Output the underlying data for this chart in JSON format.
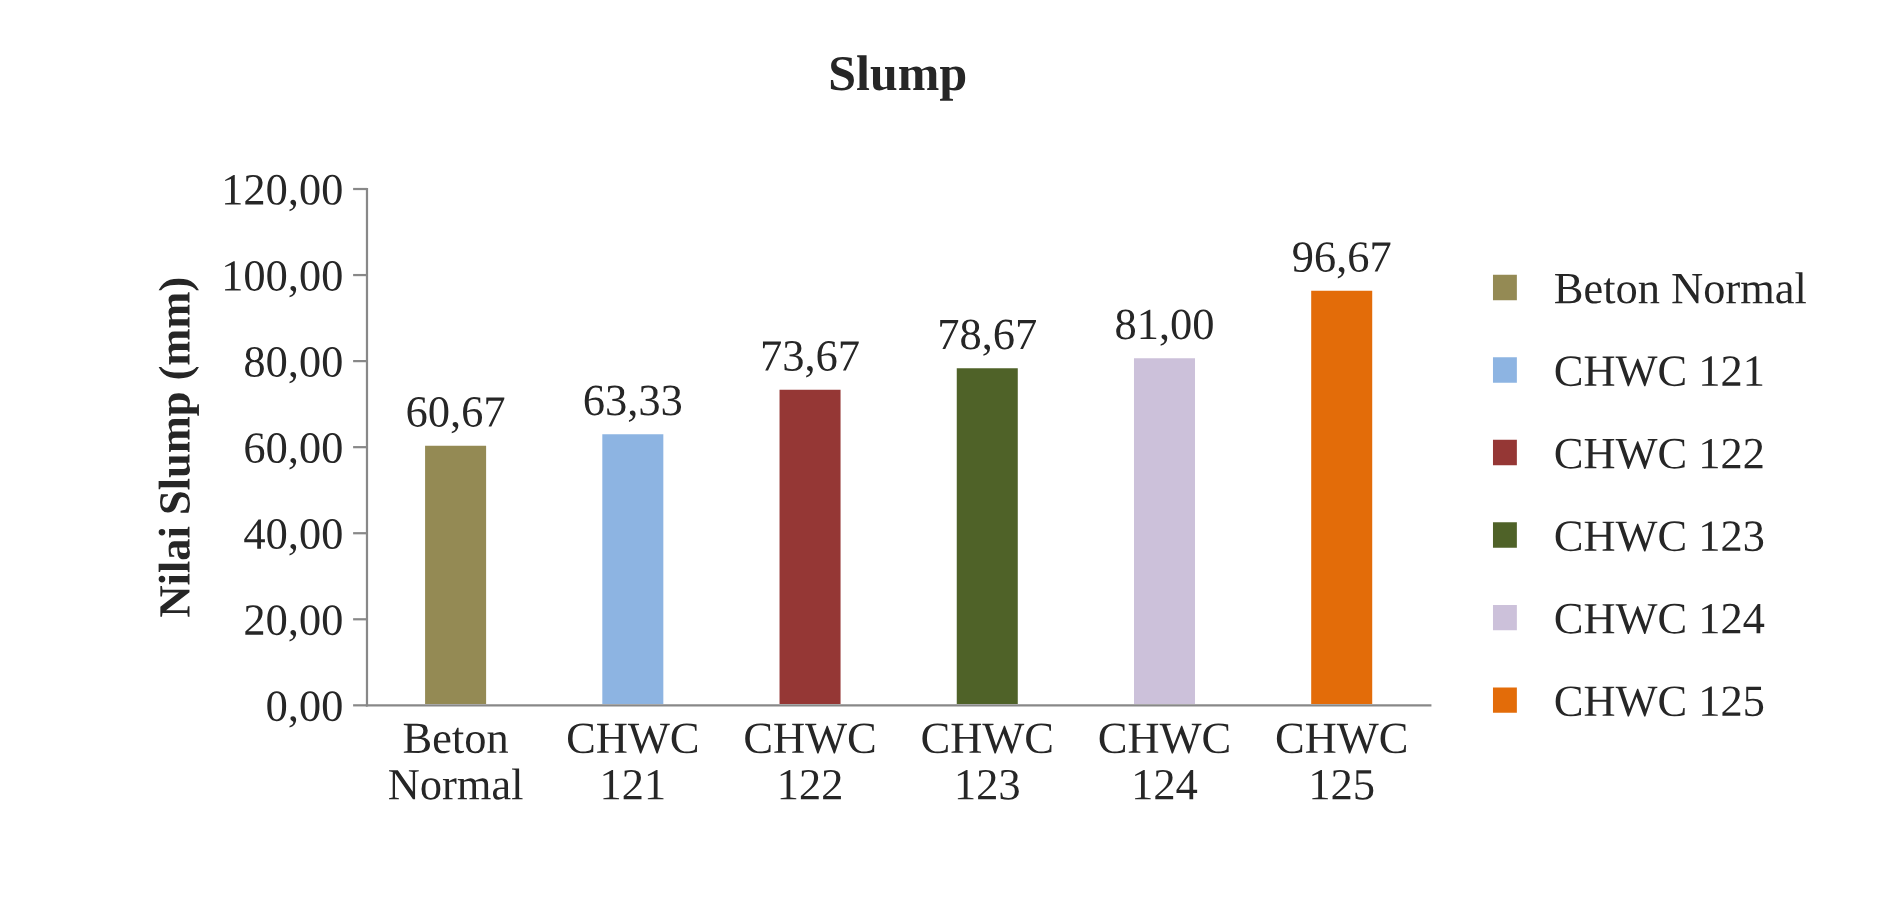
{
  "chart_data": {
    "type": "bar",
    "title": "Slump",
    "ylabel": "Nilai Slump (mm)",
    "categories": [
      "Beton Normal",
      "CHWC 121",
      "CHWC 122",
      "CHWC 123",
      "CHWC 124",
      "CHWC 125"
    ],
    "series": [
      {
        "name": "Beton Normal",
        "color": "#948a54",
        "values": [
          60.67,
          null,
          null,
          null,
          null,
          null
        ],
        "value_labels": [
          "60,67",
          null,
          null,
          null,
          null,
          null
        ]
      },
      {
        "name": "CHWC 121",
        "color": "#8db4e2",
        "values": [
          null,
          63.33,
          null,
          null,
          null,
          null
        ],
        "value_labels": [
          null,
          "63,33",
          null,
          null,
          null,
          null
        ]
      },
      {
        "name": "CHWC 122",
        "color": "#953735",
        "values": [
          null,
          null,
          73.67,
          null,
          null,
          null
        ],
        "value_labels": [
          null,
          null,
          "73,67",
          null,
          null,
          null
        ]
      },
      {
        "name": "CHWC 123",
        "color": "#4f6228",
        "values": [
          null,
          null,
          null,
          78.67,
          null,
          null
        ],
        "value_labels": [
          null,
          null,
          null,
          "78,67",
          null,
          null
        ]
      },
      {
        "name": "CHWC 124",
        "color": "#ccc1da",
        "values": [
          null,
          null,
          null,
          null,
          81.0,
          null
        ],
        "value_labels": [
          null,
          null,
          null,
          null,
          "81,00",
          null
        ]
      },
      {
        "name": "CHWC 125",
        "color": "#e36c09",
        "values": [
          null,
          null,
          null,
          null,
          null,
          96.67
        ],
        "value_labels": [
          null,
          null,
          null,
          null,
          null,
          "96,67"
        ]
      }
    ],
    "ylim": [
      0,
      120
    ],
    "yticks": [
      {
        "value": 0,
        "label": "0,00"
      },
      {
        "value": 20,
        "label": "20,00"
      },
      {
        "value": 40,
        "label": "40,00"
      },
      {
        "value": 60,
        "label": "60,00"
      },
      {
        "value": 80,
        "label": "80,00"
      },
      {
        "value": 100,
        "label": "100,00"
      },
      {
        "value": 120,
        "label": "120,00"
      }
    ],
    "legend": "right",
    "grid": false
  }
}
